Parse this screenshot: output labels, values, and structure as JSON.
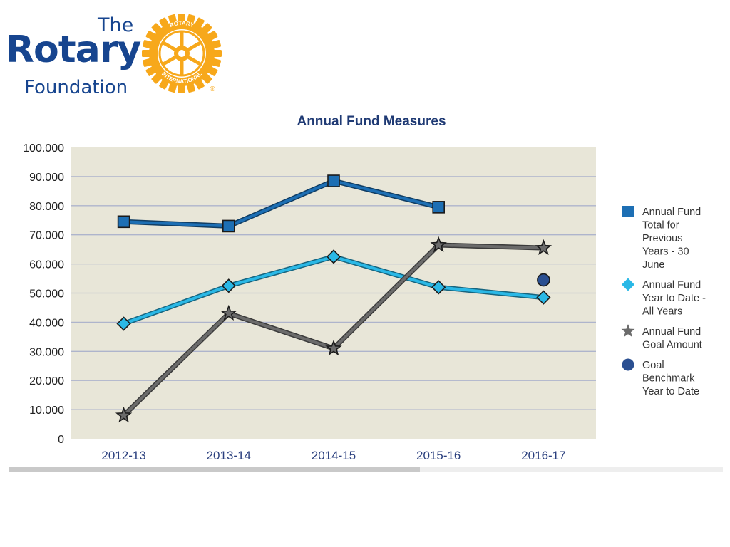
{
  "logo": {
    "line1": "The",
    "line2": "Rotary",
    "line3": "Foundation",
    "ring_top": "ROTARY",
    "ring_bottom": "INTERNATIONAL",
    "registered": "®",
    "color_blue": "#17458f",
    "color_gold": "#f7a81b"
  },
  "colors": {
    "plot_bg": "#e8e6d8",
    "grid": "#aeb4cc",
    "axis_text": "#222222",
    "category_text": "#2a3f7e",
    "title": "#1f3a74"
  },
  "chart_data": {
    "type": "line",
    "title": "Annual Fund Measures",
    "categories": [
      "2012-13",
      "2013-14",
      "2014-15",
      "2015-16",
      "2016-17"
    ],
    "ylim": [
      0,
      100000
    ],
    "yticks": [
      "0",
      "10.000",
      "20.000",
      "30.000",
      "40.000",
      "50.000",
      "60.000",
      "70.000",
      "80.000",
      "90.000",
      "100.000"
    ],
    "grid": true,
    "legend_position": "right",
    "series": [
      {
        "name": "Annual Fund Total for Previous Years - 30 June",
        "legend_lines": [
          "Annual Fund",
          "Total for",
          "Previous",
          "Years - 30",
          "June"
        ],
        "marker": "square",
        "color": "#1d6fb4",
        "values": [
          74500,
          73000,
          88500,
          79500,
          null
        ]
      },
      {
        "name": "Annual Fund Year to Date - All Years",
        "legend_lines": [
          "Annual Fund",
          "Year to Date -",
          "All Years"
        ],
        "marker": "diamond",
        "color": "#2ab8e6",
        "values": [
          39500,
          52500,
          62500,
          52000,
          48500
        ]
      },
      {
        "name": "Annual Fund Goal Amount",
        "legend_lines": [
          "Annual Fund",
          "Goal Amount"
        ],
        "marker": "star",
        "color": "#6b6b6b",
        "values": [
          8000,
          43000,
          31000,
          66500,
          65500
        ]
      },
      {
        "name": "Goal Benchmark Year to Date",
        "legend_lines": [
          "Goal",
          "Benchmark",
          "Year to Date"
        ],
        "marker": "circle",
        "color": "#2a4f91",
        "values": [
          null,
          null,
          null,
          null,
          54500
        ]
      }
    ]
  }
}
